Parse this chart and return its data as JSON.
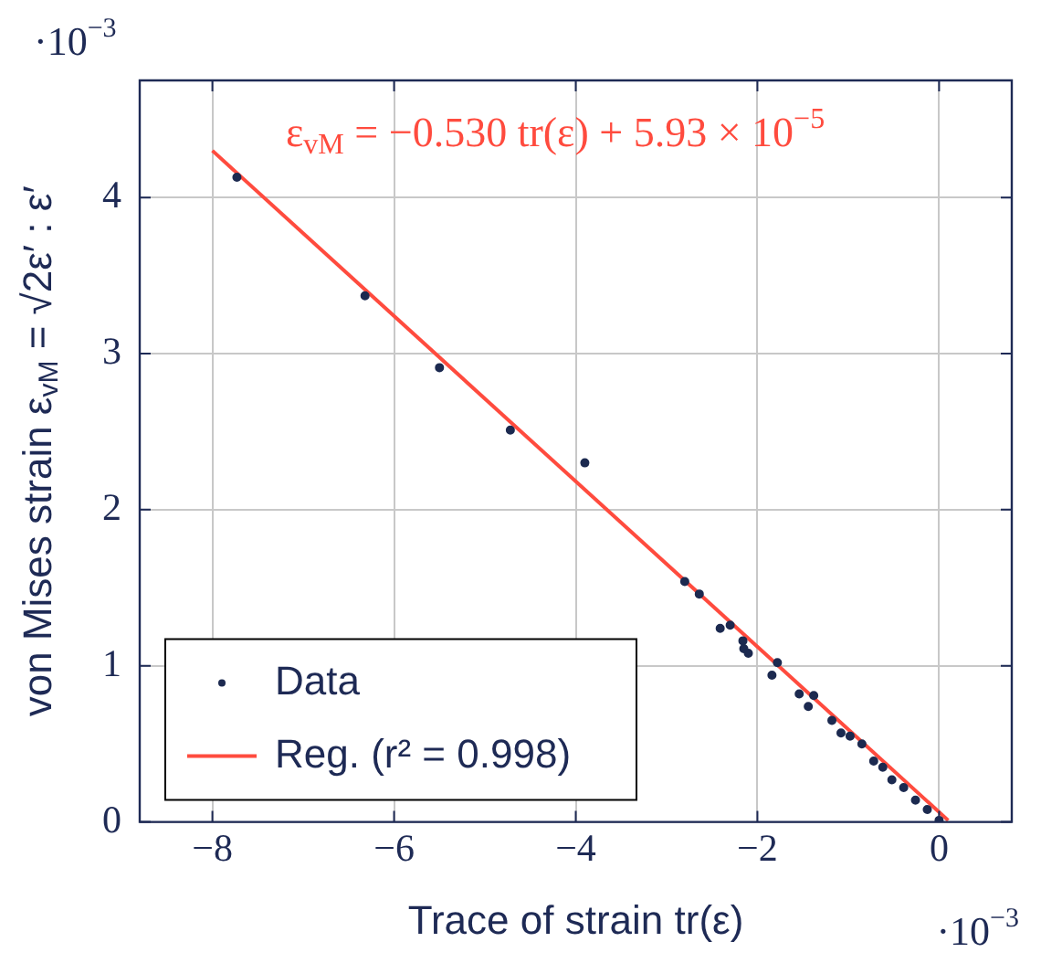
{
  "chart_data": {
    "type": "scatter",
    "xlabel": "Trace of strain tr(ε)",
    "ylabel": "von Mises strain ε$_{vM}$ = √2ε′ : ε′",
    "xlim": [
      -8.8,
      0.8
    ],
    "ylim": [
      0,
      4.75
    ],
    "xticks": [
      -8,
      -6,
      -4,
      -2,
      0
    ],
    "yticks": [
      0,
      1,
      2,
      3,
      4
    ],
    "grid": true,
    "legend": "bottom left",
    "annotations": [
      "ε$_{vM}$ = −0.530 tr(ε) + 5.93 × 10$^{−5}$",
      "·10$^{−3}$",
      "·10$^{−3}$"
    ],
    "series": [
      {
        "name": "Data",
        "marker": "circle",
        "color": "#1c2a50",
        "x": [
          -7.73,
          -6.32,
          -5.5,
          -4.72,
          -3.9,
          -2.8,
          -2.64,
          -2.41,
          -2.3,
          -2.16,
          -2.15,
          -2.1,
          -1.84,
          -1.78,
          -1.54,
          -1.44,
          -1.38,
          -1.18,
          -1.08,
          -0.98,
          -0.85,
          -0.72,
          -0.62,
          -0.52,
          -0.39,
          -0.26,
          -0.13,
          0.0
        ],
        "values": [
          4.13,
          3.37,
          2.91,
          2.51,
          2.3,
          1.54,
          1.46,
          1.24,
          1.26,
          1.16,
          1.11,
          1.08,
          0.94,
          1.02,
          0.82,
          0.74,
          0.81,
          0.65,
          0.57,
          0.55,
          0.5,
          0.39,
          0.35,
          0.27,
          0.22,
          0.14,
          0.08,
          0.01
        ]
      },
      {
        "name": "Reg. (r² = 0.998)",
        "type": "line",
        "color": "#ff4b3e",
        "marker": "none",
        "line_style": "solid",
        "x": [
          -8,
          0.1
        ],
        "values": [
          4.3,
          0.01
        ]
      }
    ]
  }
}
